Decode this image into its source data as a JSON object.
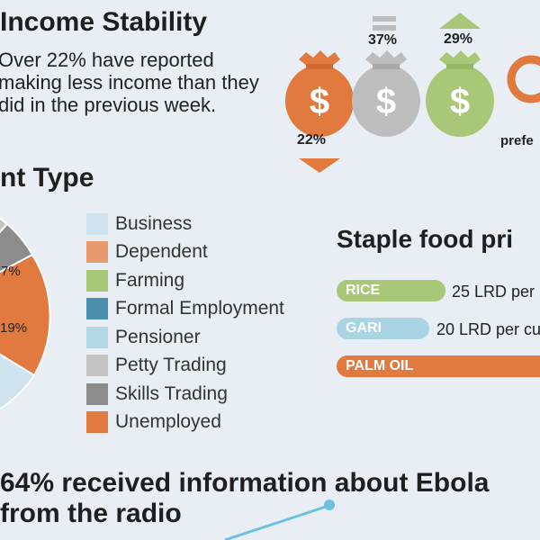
{
  "income": {
    "title": "Income Stability",
    "description": "Over 22% have reported making less income than they did in the previous week.",
    "bags": [
      {
        "label": "22%",
        "trend": "down",
        "color": "#e07a3f"
      },
      {
        "label": "37%",
        "trend": "same",
        "color": "#bdbdbd"
      },
      {
        "label": "29%",
        "trend": "up",
        "color": "#a8c878"
      }
    ],
    "partial_label": "prefe"
  },
  "employment": {
    "title": "nt Type",
    "pie_labels": [
      "7%",
      "19%"
    ],
    "legend": [
      {
        "label": "Business",
        "color": "#cfe3ee"
      },
      {
        "label": "Dependent",
        "color": "#e79a6d"
      },
      {
        "label": "Farming",
        "color": "#a8c878"
      },
      {
        "label": "Formal Employment",
        "color": "#4a90ac"
      },
      {
        "label": "Pensioner",
        "color": "#b2d8e6"
      },
      {
        "label": "Petty Trading",
        "color": "#c4c4c4"
      },
      {
        "label": "Skills Trading",
        "color": "#8c8c8c"
      },
      {
        "label": "Unemployed",
        "color": "#e07a3f"
      }
    ]
  },
  "staple": {
    "title": "Staple food pri",
    "items": [
      {
        "name": "RICE",
        "price": "25 LRD per",
        "color": "#a8c878"
      },
      {
        "name": "GARI",
        "price": "20 LRD per cu",
        "color": "#a9d4e4"
      },
      {
        "name": "PALM OIL",
        "price": "",
        "color": "#e07a3f"
      }
    ]
  },
  "radio": {
    "line1": "64% received information about Ebola",
    "line2": "from the radio",
    "accent": "#6cc0e0"
  }
}
